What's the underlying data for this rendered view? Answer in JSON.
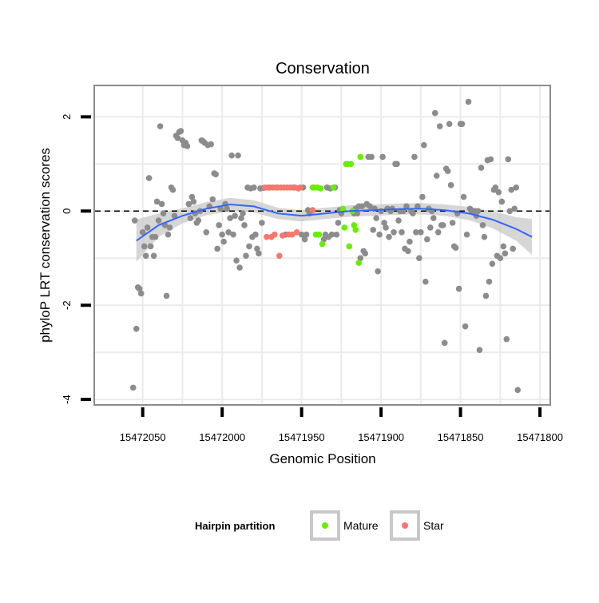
{
  "chart_data": {
    "type": "scatter",
    "title": "Conservation",
    "xlabel": "Genomic Position",
    "ylabel": "phyloP LRT conservation scores",
    "x_reversed": true,
    "xlim": [
      15472080,
      15471794
    ],
    "ylim": [
      -4.1,
      2.65
    ],
    "x_ticks": [
      15472050,
      15472000,
      15471950,
      15471900,
      15471850,
      15471800
    ],
    "x_tick_labels": [
      "15472050",
      "15472000",
      "15471950",
      "15471900",
      "15471850",
      "15471800"
    ],
    "y_ticks": [
      -4,
      -2,
      0,
      2
    ],
    "y_tick_labels": [
      "-4",
      "-2",
      "0",
      "2"
    ],
    "reference_line": {
      "y": 0,
      "style": "dashed",
      "color": "#000000"
    },
    "legend": {
      "title": "Hairpin partition",
      "position": "bottom",
      "entries": [
        {
          "label": "Mature",
          "color": "#66ee00"
        },
        {
          "label": "Star",
          "color": "#f8766d"
        }
      ]
    },
    "colors": {
      "other": "#8c8c8c",
      "mature": "#66ee00",
      "star": "#f8766d",
      "smooth": "#3366ff",
      "band": "#c8c8c8",
      "panel_border": "#8c8c8c",
      "grid": "#ebebeb"
    },
    "smooth": {
      "x": [
        15472054,
        15472040,
        15472025,
        15472010,
        15471995,
        15471980,
        15471965,
        15471950,
        15471935,
        15471920,
        15471905,
        15471890,
        15471875,
        15471860,
        15471845,
        15471830,
        15471815,
        15471805
      ],
      "y": [
        -0.63,
        -0.3,
        -0.1,
        0.05,
        0.14,
        0.1,
        -0.05,
        -0.1,
        -0.05,
        0.0,
        0.02,
        0.04,
        0.05,
        0.02,
        -0.05,
        -0.18,
        -0.38,
        -0.55
      ],
      "band_half_width": [
        0.45,
        0.25,
        0.16,
        0.14,
        0.14,
        0.13,
        0.12,
        0.12,
        0.12,
        0.12,
        0.12,
        0.12,
        0.12,
        0.12,
        0.14,
        0.18,
        0.25,
        0.38
      ]
    },
    "series": [
      {
        "name": "Other",
        "color": "#8c8c8c",
        "points": [
          [
            15472056,
            -3.75
          ],
          [
            15472055,
            -0.2
          ],
          [
            15472054,
            -2.5
          ],
          [
            15472053,
            -1.62
          ],
          [
            15472052,
            -1.65
          ],
          [
            15472051,
            -1.75
          ],
          [
            15472050,
            -0.45
          ],
          [
            15472049,
            -0.75
          ],
          [
            15472048,
            -0.95
          ],
          [
            15472047,
            -0.35
          ],
          [
            15472046,
            0.7
          ],
          [
            15472045,
            -0.75
          ],
          [
            15472044,
            -0.55
          ],
          [
            15472043,
            -0.95
          ],
          [
            15472042,
            -0.55
          ],
          [
            15472041,
            0.2
          ],
          [
            15472040,
            -0.2
          ],
          [
            15472039,
            1.8
          ],
          [
            15472038,
            0.15
          ],
          [
            15472037,
            -0.05
          ],
          [
            15472036,
            -0.3
          ],
          [
            15472035,
            -1.8
          ],
          [
            15472034,
            -0.5
          ],
          [
            15472033,
            -0.35
          ],
          [
            15472032,
            0.5
          ],
          [
            15472031,
            0.45
          ],
          [
            15472030,
            -0.1
          ],
          [
            15472029,
            1.6
          ],
          [
            15472028,
            1.55
          ],
          [
            15472027,
            1.68
          ],
          [
            15472026,
            1.7
          ],
          [
            15472025,
            1.5
          ],
          [
            15472024,
            1.4
          ],
          [
            15472023,
            1.45
          ],
          [
            15472022,
            1.38
          ],
          [
            15472021,
            0.15
          ],
          [
            15472020,
            -0.15
          ],
          [
            15472019,
            0.3
          ],
          [
            15472018,
            0.2
          ],
          [
            15472017,
            -0.05
          ],
          [
            15472016,
            -0.25
          ],
          [
            15472015,
            -0.2
          ],
          [
            15472014,
            0.0
          ],
          [
            15472013,
            1.5
          ],
          [
            15472012,
            1.48
          ],
          [
            15472011,
            1.45
          ],
          [
            15472010,
            -0.45
          ],
          [
            15472009,
            1.4
          ],
          [
            15472008,
            0.1
          ],
          [
            15472007,
            1.42
          ],
          [
            15472006,
            0.25
          ],
          [
            15472005,
            0.8
          ],
          [
            15472004,
            0.78
          ],
          [
            15472003,
            -0.8
          ],
          [
            15472002,
            -0.3
          ],
          [
            15472001,
            0.05
          ],
          [
            15472000,
            -0.5
          ],
          [
            15471999,
            -0.65
          ],
          [
            15471998,
            0.15
          ],
          [
            15471997,
            0.05
          ],
          [
            15471996,
            -0.45
          ],
          [
            15471995,
            -0.15
          ],
          [
            15471994,
            1.18
          ],
          [
            15471993,
            -0.5
          ],
          [
            15471992,
            -0.1
          ],
          [
            15471991,
            -1.05
          ],
          [
            15471990,
            1.18
          ],
          [
            15471989,
            -1.2
          ],
          [
            15471988,
            -0.15
          ],
          [
            15471987,
            -0.05
          ],
          [
            15471986,
            -0.3
          ],
          [
            15471985,
            -0.95
          ],
          [
            15471984,
            0.5
          ],
          [
            15471983,
            -0.75
          ],
          [
            15471982,
            0.48
          ],
          [
            15471981,
            -0.55
          ],
          [
            15471980,
            0.5
          ],
          [
            15471979,
            -0.5
          ],
          [
            15471978,
            -0.8
          ],
          [
            15471977,
            -0.9
          ],
          [
            15471976,
            0.48
          ],
          [
            15471975,
            -0.25
          ],
          [
            15471974,
            0.49
          ],
          [
            15471960,
            -0.5
          ],
          [
            15471955,
            0.5
          ],
          [
            15471950,
            -0.5
          ],
          [
            15471949,
            0.5
          ],
          [
            15471948,
            -0.6
          ],
          [
            15471947,
            -0.5
          ],
          [
            15471946,
            0.02
          ],
          [
            15471945,
            -0.05
          ],
          [
            15471944,
            0.0
          ],
          [
            15471936,
            -0.6
          ],
          [
            15471935,
            -0.5
          ],
          [
            15471934,
            0.5
          ],
          [
            15471933,
            -0.55
          ],
          [
            15471932,
            0.48
          ],
          [
            15471931,
            -0.5
          ],
          [
            15471929,
            0.5
          ],
          [
            15471928,
            -0.5
          ],
          [
            15471927,
            -0.25
          ],
          [
            15471926,
            0.02
          ],
          [
            15471925,
            -0.05
          ],
          [
            15471918,
            0.0
          ],
          [
            15471917,
            -0.05
          ],
          [
            15471916,
            0.05
          ],
          [
            15471915,
            -0.05
          ],
          [
            15471914,
            0.1
          ],
          [
            15471913,
            -1.0
          ],
          [
            15471912,
            0.1
          ],
          [
            15471911,
            -0.85
          ],
          [
            15471910,
            -0.9
          ],
          [
            15471909,
            0.15
          ],
          [
            15471908,
            1.15
          ],
          [
            15471907,
            0.1
          ],
          [
            15471906,
            1.15
          ],
          [
            15471905,
            -0.4
          ],
          [
            15471904,
            0.05
          ],
          [
            15471903,
            -0.15
          ],
          [
            15471902,
            -1.28
          ],
          [
            15471901,
            -0.5
          ],
          [
            15471900,
            0.0
          ],
          [
            15471899,
            1.15
          ],
          [
            15471898,
            -0.25
          ],
          [
            15471897,
            -0.35
          ],
          [
            15471896,
            0.05
          ],
          [
            15471895,
            -0.55
          ],
          [
            15471894,
            0.0
          ],
          [
            15471893,
            0.05
          ],
          [
            15471892,
            -0.45
          ],
          [
            15471891,
            1.0
          ],
          [
            15471890,
            1.0
          ],
          [
            15471889,
            -0.2
          ],
          [
            15471888,
            0.0
          ],
          [
            15471887,
            -0.45
          ],
          [
            15471886,
            0.0
          ],
          [
            15471885,
            -0.8
          ],
          [
            15471884,
            0.1
          ],
          [
            15471883,
            -0.85
          ],
          [
            15471882,
            -0.65
          ],
          [
            15471881,
            0.0
          ],
          [
            15471880,
            -0.05
          ],
          [
            15471879,
            1.15
          ],
          [
            15471878,
            -0.45
          ],
          [
            15471877,
            0.1
          ],
          [
            15471876,
            -1.0
          ],
          [
            15471875,
            -0.45
          ],
          [
            15471874,
            0.3
          ],
          [
            15471873,
            1.4
          ],
          [
            15471872,
            -1.5
          ],
          [
            15471871,
            -0.6
          ],
          [
            15471870,
            0.05
          ],
          [
            15471869,
            -0.35
          ],
          [
            15471868,
            0.0
          ],
          [
            15471867,
            -0.15
          ],
          [
            15471866,
            2.08
          ],
          [
            15471865,
            0.75
          ],
          [
            15471864,
            -0.45
          ],
          [
            15471863,
            1.8
          ],
          [
            15471862,
            -0.3
          ],
          [
            15471861,
            -0.3
          ],
          [
            15471860,
            -2.8
          ],
          [
            15471859,
            0.9
          ],
          [
            15471858,
            0.85
          ],
          [
            15471857,
            1.85
          ],
          [
            15471856,
            0.55
          ],
          [
            15471855,
            -0.25
          ],
          [
            15471854,
            -0.75
          ],
          [
            15471853,
            -0.78
          ],
          [
            15471852,
            -0.05
          ],
          [
            15471851,
            -1.65
          ],
          [
            15471850,
            1.85
          ],
          [
            15471849,
            1.85
          ],
          [
            15471848,
            0.3
          ],
          [
            15471847,
            -2.45
          ],
          [
            15471846,
            -0.5
          ],
          [
            15471845,
            2.32
          ],
          [
            15471844,
            0.05
          ],
          [
            15471843,
            0.0
          ],
          [
            15471842,
            0.0
          ],
          [
            15471841,
            0.0
          ],
          [
            15471840,
            -0.1
          ],
          [
            15471839,
            0.0
          ],
          [
            15471838,
            -2.95
          ],
          [
            15471837,
            0.92
          ],
          [
            15471836,
            -0.3
          ],
          [
            15471835,
            -0.55
          ],
          [
            15471834,
            -1.8
          ],
          [
            15471833,
            1.08
          ],
          [
            15471832,
            -1.5
          ],
          [
            15471831,
            1.1
          ],
          [
            15471830,
            -1.12
          ],
          [
            15471829,
            0.45
          ],
          [
            15471828,
            0.5
          ],
          [
            15471827,
            -0.95
          ],
          [
            15471826,
            0.4
          ],
          [
            15471825,
            -1.0
          ],
          [
            15471824,
            0.2
          ],
          [
            15471823,
            -0.75
          ],
          [
            15471822,
            -0.9
          ],
          [
            15471821,
            -2.72
          ],
          [
            15471820,
            1.1
          ],
          [
            15471819,
            0.0
          ],
          [
            15471818,
            0.45
          ],
          [
            15471817,
            -0.8
          ],
          [
            15471816,
            0.05
          ],
          [
            15471815,
            0.5
          ],
          [
            15471814,
            -3.8
          ]
        ]
      },
      {
        "name": "Star",
        "color": "#f8766d",
        "points": [
          [
            15471973,
            0.5
          ],
          [
            15471972,
            -0.55
          ],
          [
            15471971,
            0.5
          ],
          [
            15471970,
            0.5
          ],
          [
            15471969,
            -0.55
          ],
          [
            15471968,
            0.5
          ],
          [
            15471967,
            -0.5
          ],
          [
            15471966,
            0.5
          ],
          [
            15471965,
            0.5
          ],
          [
            15471964,
            -0.95
          ],
          [
            15471963,
            0.5
          ],
          [
            15471962,
            -0.52
          ],
          [
            15471961,
            0.5
          ],
          [
            15471959,
            0.5
          ],
          [
            15471958,
            -0.5
          ],
          [
            15471957,
            0.5
          ],
          [
            15471956,
            -0.5
          ],
          [
            15471954,
            0.5
          ],
          [
            15471953,
            -0.45
          ],
          [
            15471952,
            0.48
          ],
          [
            15471951,
            0.5
          ],
          [
            15471943,
            0.02
          ]
        ]
      },
      {
        "name": "Mature",
        "color": "#66ee00",
        "points": [
          [
            15471942,
            0.5
          ],
          [
            15471941,
            -0.5
          ],
          [
            15471940,
            0.5
          ],
          [
            15471939,
            -0.5
          ],
          [
            15471938,
            0.48
          ],
          [
            15471937,
            -0.7
          ],
          [
            15471930,
            0.5
          ],
          [
            15471924,
            0.05
          ],
          [
            15471923,
            -0.35
          ],
          [
            15471922,
            1.0
          ],
          [
            15471921,
            1.0
          ],
          [
            15471920,
            -0.75
          ],
          [
            15471919,
            1.0
          ],
          [
            15471918,
            0.0
          ],
          [
            15471917,
            -0.3
          ],
          [
            15471916,
            -0.4
          ],
          [
            15471914,
            -1.1
          ],
          [
            15471913,
            1.15
          ],
          [
            15471943,
            0.5
          ]
        ]
      }
    ]
  }
}
